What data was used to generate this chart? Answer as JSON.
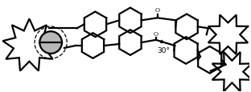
{
  "bg_color": "#ffffff",
  "line_color": "#000000",
  "line_width": 1.6,
  "fig_width": 3.12,
  "fig_height": 1.16,
  "dpi": 100,
  "annotation_text": "30°",
  "sphere_color": "#b8b8b8",
  "sphere_edge_color": "#000000"
}
